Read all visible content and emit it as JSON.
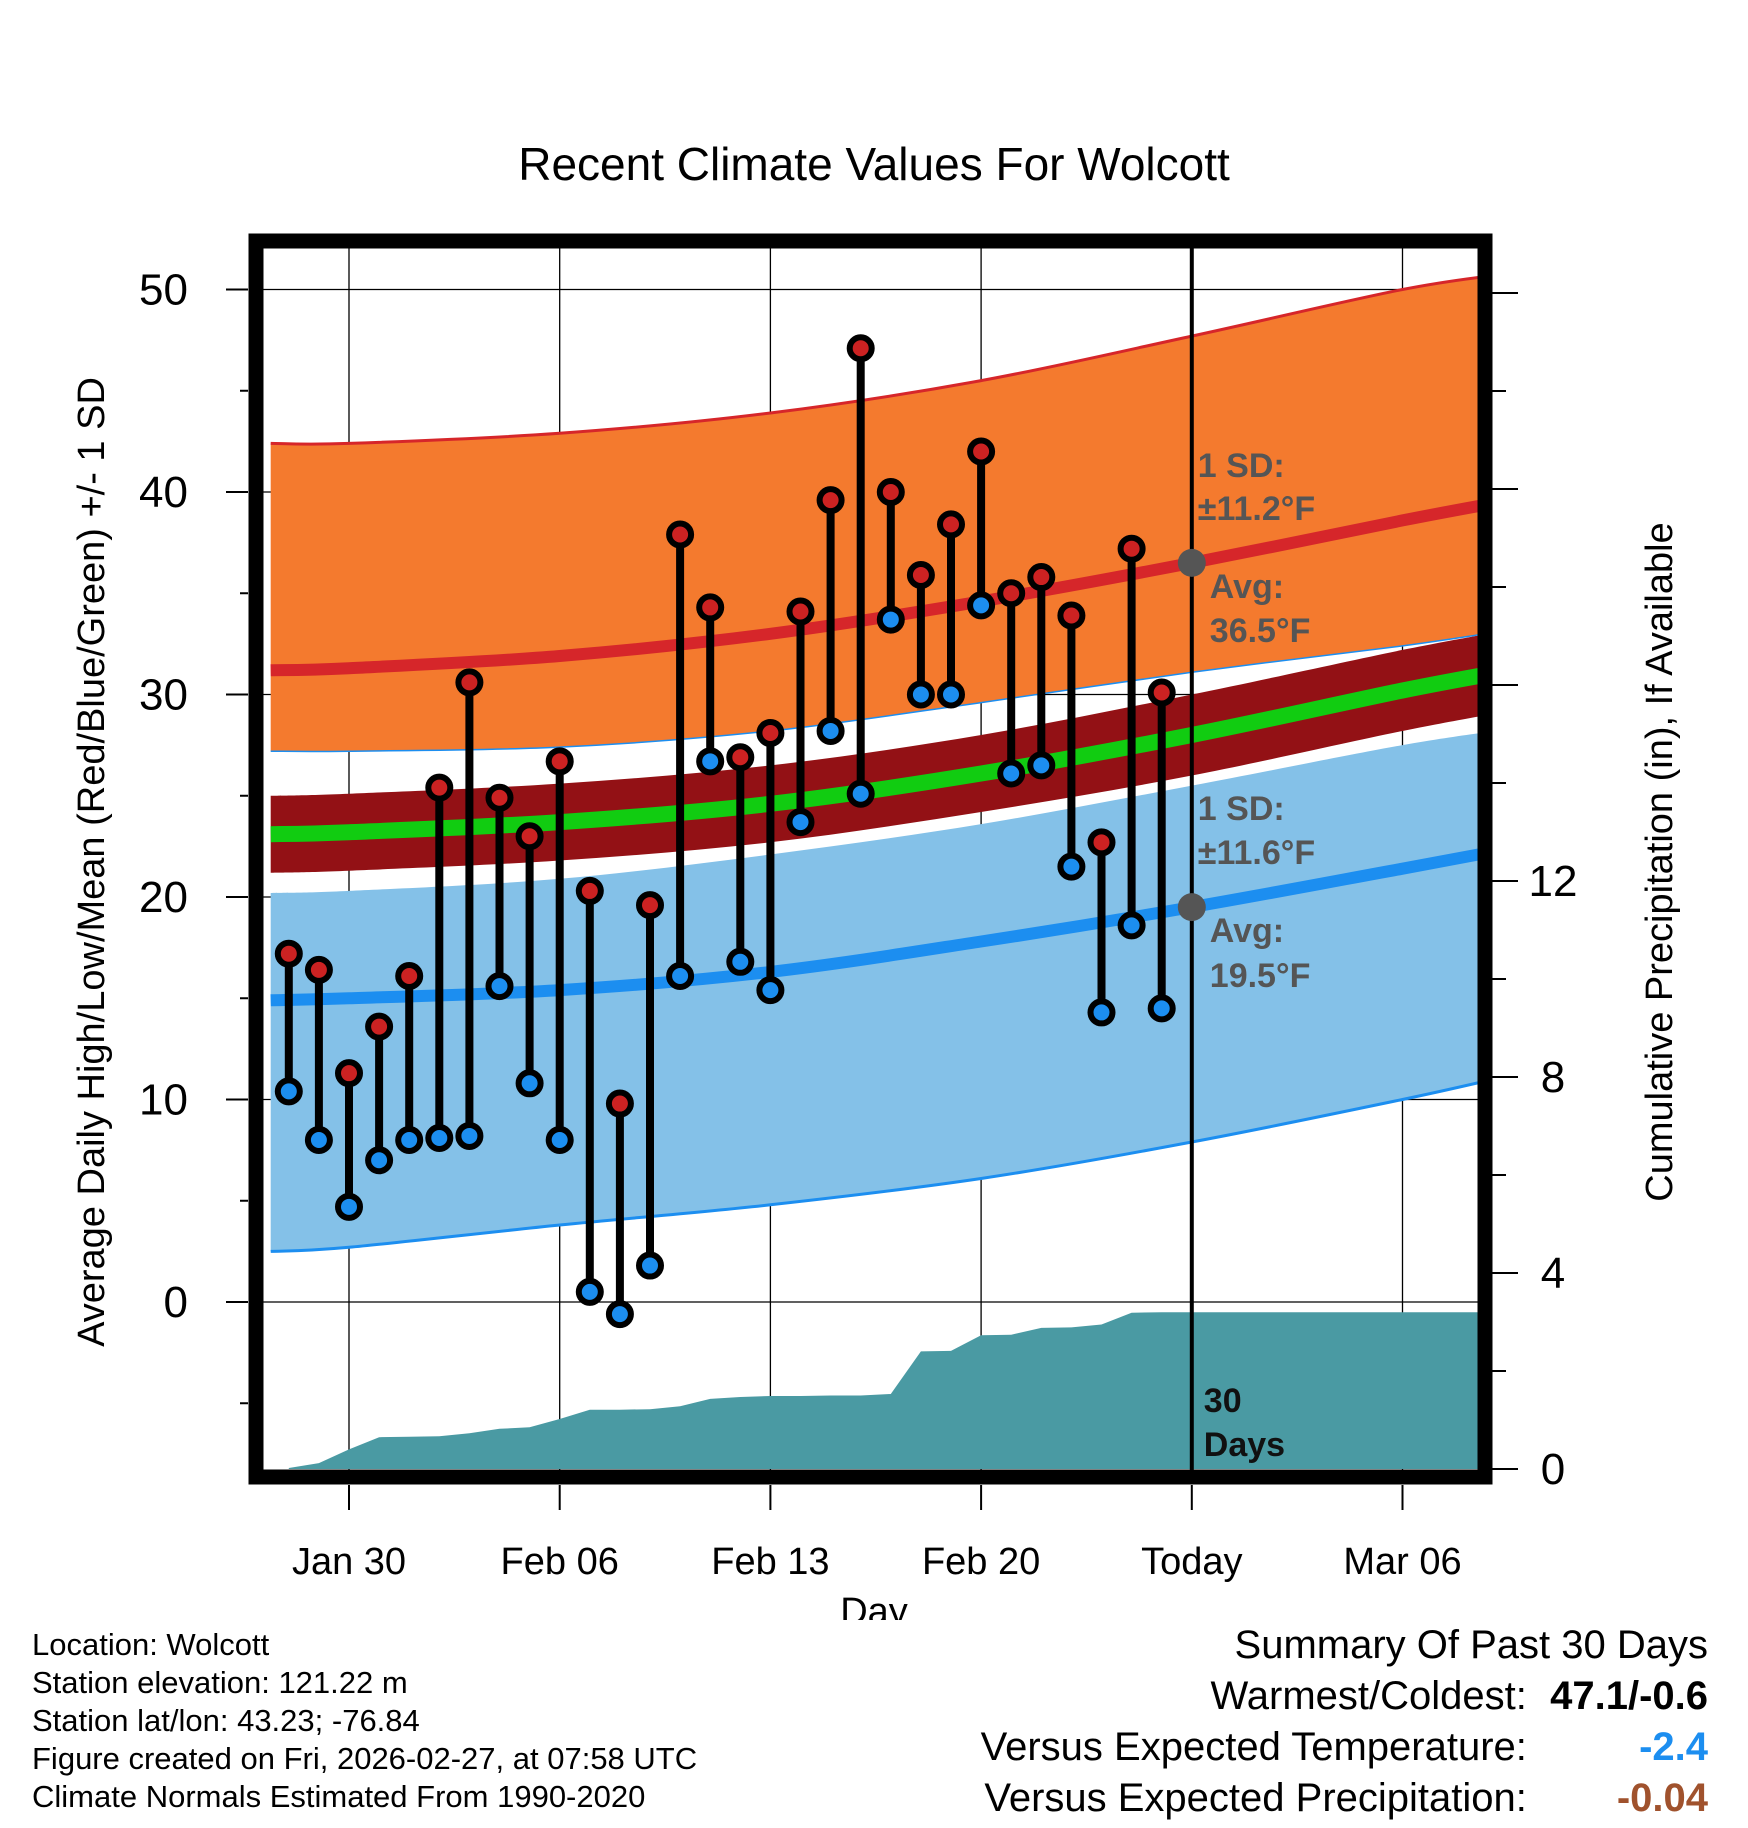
{
  "title": "Recent Climate Values For Wolcott",
  "chart_data": {
    "type": "line",
    "title": "Recent Climate Values For Wolcott",
    "xlabel": "Day",
    "ylabel": "Average Daily High/Low/Mean (Red/Blue/Green) +/- 1 SD",
    "y2label": "Cumulative Precipitation (in), If Available",
    "ylim": [
      -8.2,
      51.5
    ],
    "y2lim": [
      0,
      24
    ],
    "xlim": [
      -5.4,
      41.4
    ],
    "yticks": [
      0,
      10,
      20,
      30,
      40,
      50
    ],
    "y2ticks": [
      0,
      4,
      8,
      12
    ],
    "xticks": [
      {
        "day": 0,
        "label": "Jan 30"
      },
      {
        "day": 7,
        "label": "Feb 06"
      },
      {
        "day": 14,
        "label": "Feb 13"
      },
      {
        "day": 21,
        "label": "Feb 20"
      },
      {
        "day": 28,
        "label": "Today"
      },
      {
        "day": 35,
        "label": "Mar 06"
      }
    ],
    "today_day": 28,
    "grid": true,
    "normals": {
      "x": [
        -2.6,
        0,
        7,
        14,
        21,
        28,
        35,
        38.6
      ],
      "high_avg": [
        31.2,
        31.3,
        31.9,
        33.0,
        34.6,
        36.5,
        38.6,
        39.6
      ],
      "high_upper": [
        42.4,
        42.4,
        42.9,
        43.9,
        45.5,
        47.7,
        50.0,
        50.8
      ],
      "high_lower": [
        27.2,
        27.2,
        27.4,
        28.2,
        29.6,
        31.1,
        32.4,
        33.2
      ],
      "mean_avg": [
        23.1,
        23.2,
        23.7,
        24.6,
        26.1,
        28.0,
        30.2,
        31.2
      ],
      "mean_upper": [
        25.0,
        25.1,
        25.6,
        26.5,
        28.0,
        30.0,
        32.2,
        33.2
      ],
      "mean_lower": [
        21.2,
        21.3,
        21.8,
        22.7,
        24.2,
        26.0,
        28.2,
        29.2
      ],
      "low_avg": [
        14.9,
        15.0,
        15.4,
        16.3,
        17.8,
        19.5,
        21.4,
        22.4
      ],
      "low_upper": [
        20.2,
        20.3,
        20.9,
        22.1,
        23.6,
        25.5,
        27.5,
        28.3
      ],
      "low_lower": [
        2.5,
        2.7,
        3.8,
        4.8,
        6.1,
        7.9,
        10.0,
        11.2
      ]
    },
    "observations": {
      "day": [
        -2,
        -1,
        0,
        1,
        2,
        3,
        4,
        5,
        6,
        7,
        8,
        9,
        10,
        11,
        12,
        13,
        14,
        15,
        16,
        17,
        18,
        19,
        20,
        21,
        22,
        23,
        24,
        25,
        26,
        27
      ],
      "high": [
        17.2,
        16.4,
        11.3,
        13.6,
        16.1,
        25.4,
        30.6,
        24.9,
        23.0,
        26.7,
        20.3,
        9.8,
        19.6,
        37.9,
        34.3,
        26.9,
        28.1,
        34.1,
        39.6,
        47.1,
        40.0,
        35.9,
        38.4,
        42.0,
        35.0,
        35.8,
        33.9,
        22.7,
        37.2,
        30.1
      ],
      "low": [
        10.4,
        8.0,
        4.7,
        7.0,
        8.0,
        8.1,
        8.2,
        15.6,
        10.8,
        8.0,
        0.5,
        -0.6,
        1.8,
        16.1,
        26.7,
        16.8,
        15.4,
        23.7,
        28.2,
        25.1,
        33.7,
        30.0,
        30.0,
        34.4,
        26.1,
        26.5,
        21.5,
        14.3,
        18.6,
        14.5
      ]
    },
    "precip": {
      "day": [
        -2,
        -1,
        0,
        1,
        2,
        3,
        4,
        5,
        6,
        7,
        8,
        9,
        10,
        11,
        12,
        13,
        14,
        15,
        16,
        17,
        18,
        19,
        20,
        21,
        22,
        23,
        24,
        25,
        26,
        27,
        28,
        38.6
      ],
      "cumulative": [
        0.02,
        0.12,
        0.4,
        0.65,
        0.66,
        0.67,
        0.73,
        0.82,
        0.85,
        1.02,
        1.21,
        1.21,
        1.22,
        1.28,
        1.43,
        1.47,
        1.49,
        1.49,
        1.5,
        1.5,
        1.53,
        2.4,
        2.41,
        2.73,
        2.74,
        2.88,
        2.89,
        2.95,
        3.19,
        3.2,
        3.2,
        3.2
      ]
    },
    "annotations": {
      "high_sd": {
        "line1": "1 SD:",
        "line2": "±11.2°F"
      },
      "high_avg": {
        "line1": "Avg:",
        "line2": "36.5°F",
        "value": 36.5
      },
      "low_sd": {
        "line1": "1 SD:",
        "line2": "±11.6°F"
      },
      "low_avg": {
        "line1": "Avg:",
        "line2": "19.5°F",
        "value": 19.5
      },
      "period_line1": "30",
      "period_line2": "Days"
    },
    "colors": {
      "high_band": "#f47a2e",
      "high_line": "#d6262a",
      "high_edge": "#d6262a",
      "mean_band": "#931115",
      "mean_line": "#11cc11",
      "low_band": "#84c1e8",
      "low_line": "#1c8ef0",
      "precip_fill": "#4a9aa3",
      "high_dot": "#cc2222",
      "low_dot": "#1c8ef0",
      "annotation": "#555555"
    }
  },
  "footer": {
    "location": "Location: Wolcott",
    "elevation": "Station elevation: 121.22 m",
    "latlon": "Station lat/lon: 43.23; -76.84",
    "created": "Figure created on Fri, 2026-02-27, at 07:58 UTC",
    "normals": "Climate Normals Estimated From 1990-2020"
  },
  "summary": {
    "title": "Summary Of Past 30 Days",
    "warm_label": "Warmest/Coldest:",
    "warm_value": "47.1/-0.6",
    "temp_label": "Versus Expected Temperature:",
    "temp_value": "-2.4",
    "temp_color": "#1c8ef0",
    "precip_label": "Versus Expected Precipitation:",
    "precip_value": "-0.04",
    "precip_color": "#a0522d"
  }
}
